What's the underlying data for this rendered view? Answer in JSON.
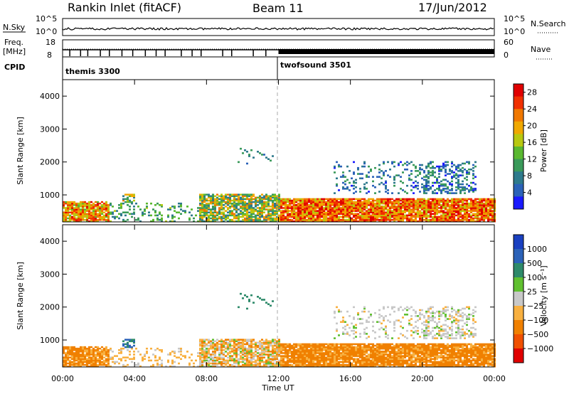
{
  "header": {
    "station": "Rankin Inlet (fitACF)",
    "beam": "Beam 11",
    "date": "17/Jun/2012"
  },
  "strip": {
    "nsky_label": "N.Sky",
    "nsky_ticks": [
      "10^5",
      "10^0"
    ],
    "nsearch_label": "N.Search",
    "nsearch_ticks": [
      "10^5",
      "10^0"
    ],
    "freq_label": "Freq.",
    "freq_unit": "[MHz]",
    "freq_ticks": [
      "18",
      "8"
    ],
    "nave_label": "Nave",
    "nave_ticks": [
      "60",
      "0"
    ],
    "cpid_label": "CPID",
    "cpid_segments": [
      {
        "name": "themis 3300",
        "start_hour": 0
      },
      {
        "name": "twofsound 3501",
        "start_hour": 12
      }
    ]
  },
  "panels": {
    "ylabel": "Slant Range [km]",
    "xlabel": "Time UT",
    "yticks": [
      "4000",
      "3000",
      "2000",
      "1000"
    ],
    "xticks": [
      "00:00",
      "04:00",
      "08:00",
      "12:00",
      "16:00",
      "20:00",
      "00:00"
    ]
  },
  "colorbars": {
    "power_label": "Power [dB]",
    "power_ticks": [
      "28",
      "24",
      "20",
      "16",
      "12",
      "8",
      "4"
    ],
    "velocity_label": "Velocity [m s⁻¹]",
    "velocity_ticks": [
      "1000",
      "500",
      "100",
      "25",
      "−25",
      "−100",
      "−500",
      "−1000"
    ]
  },
  "chart_data": [
    {
      "type": "heatmap",
      "quantity": "Power",
      "unit": "dB",
      "x_range_hours": [
        0,
        24
      ],
      "y_range_km": [
        180,
        4500
      ],
      "color_range": [
        0,
        30
      ],
      "colors": [
        "#1a1aff",
        "#2b62b8",
        "#2e7a8c",
        "#3a9a5a",
        "#5ab830",
        "#b8c810",
        "#f0a800",
        "#f07800",
        "#f03000",
        "#e00000"
      ],
      "features": [
        {
          "time_hours": [
            0,
            2.5
          ],
          "range_km": [
            180,
            800
          ],
          "typical_db": 20
        },
        {
          "time_hours": [
            3.3,
            4
          ],
          "range_km": [
            400,
            1000
          ],
          "typical_db": 18
        },
        {
          "time_hours": [
            7.5,
            12
          ],
          "range_km": [
            180,
            1000
          ],
          "typical_db": 14
        },
        {
          "time_hours": [
            12,
            24
          ],
          "range_km": [
            180,
            900
          ],
          "typical_db": 26
        },
        {
          "time_hours": [
            16,
            23
          ],
          "range_km": [
            1000,
            2000
          ],
          "typical_db": 6
        }
      ]
    },
    {
      "type": "heatmap",
      "quantity": "Velocity",
      "unit": "m s^-1",
      "x_range_hours": [
        0,
        24
      ],
      "y_range_km": [
        180,
        4500
      ],
      "color_levels": [
        -1000,
        -500,
        -100,
        -25,
        25,
        100,
        500,
        1000
      ],
      "colors": [
        "#e00000",
        "#f05000",
        "#f08000",
        "#f8b040",
        "#c8c8c8",
        "#60c030",
        "#2e8a6a",
        "#2b62b8",
        "#1a40c0"
      ],
      "features": [
        {
          "time_hours": [
            0,
            3
          ],
          "range_km": [
            180,
            800
          ],
          "typical_ms": -100
        },
        {
          "time_hours": [
            3.3,
            4
          ],
          "range_km": [
            400,
            1000
          ],
          "typical_ms": 500
        },
        {
          "time_hours": [
            10,
            12
          ],
          "range_km": [
            180,
            850
          ],
          "typical_ms": -100
        },
        {
          "time_hours": [
            12,
            24
          ],
          "range_km": [
            180,
            900
          ],
          "typical_ms": -100
        },
        {
          "time_hours": [
            16,
            23
          ],
          "range_km": [
            1000,
            2000
          ],
          "typical_ms": 0
        }
      ]
    }
  ]
}
